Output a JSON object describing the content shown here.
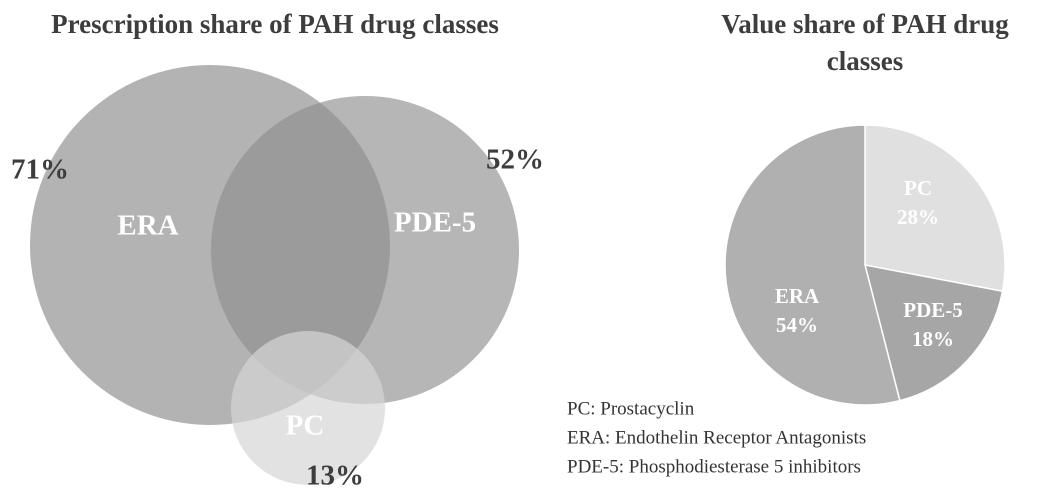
{
  "chart_data": [
    {
      "type": "venn",
      "title": "Prescription share of PAH drug classes",
      "categories": [
        "ERA",
        "PDE-5",
        "PC"
      ],
      "values": [
        71,
        52,
        13
      ],
      "value_labels": [
        "71%",
        "52%",
        "13%"
      ],
      "colors": [
        "#8a8a8a",
        "#8f8f8f",
        "#d6d6d6"
      ]
    },
    {
      "type": "pie",
      "title": "Value share of PAH drug classes",
      "categories": [
        "PC",
        "PDE-5",
        "ERA"
      ],
      "values": [
        28,
        18,
        54
      ],
      "value_labels": [
        "28%",
        "18%",
        "54%"
      ],
      "colors": [
        "#e0e0e0",
        "#a6a6a6",
        "#b0b0b0"
      ],
      "legend": [
        "PC: Prostacyclin",
        "ERA: Endothelin Receptor Antagonists",
        "PDE-5: Phosphodiesterase 5 inhibitors"
      ]
    }
  ]
}
